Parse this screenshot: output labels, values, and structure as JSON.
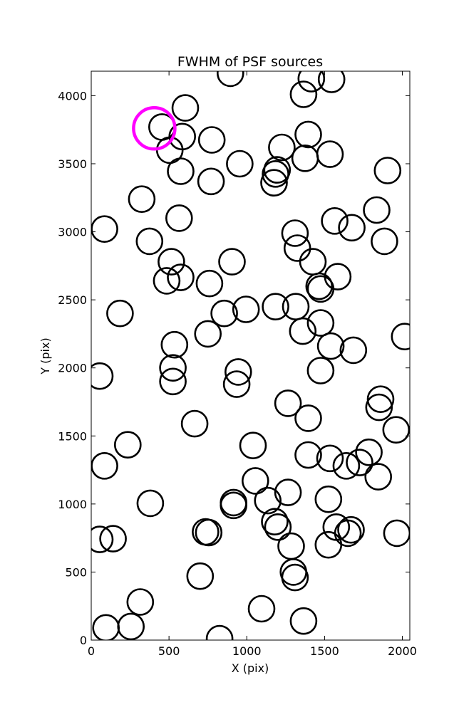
{
  "chart_data": {
    "type": "scatter",
    "title": "FWHM of PSF sources",
    "xlabel": "X (pix)",
    "ylabel": "Y (pix)",
    "xlim": [
      0,
      2048
    ],
    "ylim": [
      0,
      4180
    ],
    "xticks": [
      0,
      500,
      1000,
      1500,
      2000
    ],
    "yticks": [
      0,
      500,
      1000,
      1500,
      2000,
      2500,
      3000,
      3500,
      4000
    ],
    "grid": false,
    "marker": "open-circle",
    "marker_color": "#000000",
    "highlight_color": "#ff00ff",
    "series": [
      {
        "points": [
          {
            "x": 895,
            "y": 4165
          },
          {
            "x": 1415,
            "y": 4125
          },
          {
            "x": 1545,
            "y": 4120
          },
          {
            "x": 1365,
            "y": 4010
          },
          {
            "x": 605,
            "y": 3910
          },
          {
            "x": 455,
            "y": 3770
          },
          {
            "x": 585,
            "y": 3700
          },
          {
            "x": 775,
            "y": 3675
          },
          {
            "x": 1395,
            "y": 3715
          },
          {
            "x": 505,
            "y": 3600
          },
          {
            "x": 1225,
            "y": 3620
          },
          {
            "x": 1535,
            "y": 3570
          },
          {
            "x": 1375,
            "y": 3540
          },
          {
            "x": 955,
            "y": 3500
          },
          {
            "x": 1195,
            "y": 3455
          },
          {
            "x": 1185,
            "y": 3425
          },
          {
            "x": 575,
            "y": 3445
          },
          {
            "x": 770,
            "y": 3370
          },
          {
            "x": 1175,
            "y": 3360
          },
          {
            "x": 1905,
            "y": 3450
          },
          {
            "x": 325,
            "y": 3240
          },
          {
            "x": 1835,
            "y": 3160
          },
          {
            "x": 565,
            "y": 3100
          },
          {
            "x": 1565,
            "y": 3080
          },
          {
            "x": 1675,
            "y": 3030
          },
          {
            "x": 85,
            "y": 3020
          },
          {
            "x": 1310,
            "y": 2990
          },
          {
            "x": 1885,
            "y": 2930
          },
          {
            "x": 375,
            "y": 2930
          },
          {
            "x": 1325,
            "y": 2880
          },
          {
            "x": 515,
            "y": 2780
          },
          {
            "x": 905,
            "y": 2780
          },
          {
            "x": 1425,
            "y": 2780
          },
          {
            "x": 1585,
            "y": 2670
          },
          {
            "x": 575,
            "y": 2665
          },
          {
            "x": 485,
            "y": 2640
          },
          {
            "x": 760,
            "y": 2620
          },
          {
            "x": 1465,
            "y": 2600
          },
          {
            "x": 1475,
            "y": 2580
          },
          {
            "x": 1185,
            "y": 2450
          },
          {
            "x": 1315,
            "y": 2450
          },
          {
            "x": 995,
            "y": 2430
          },
          {
            "x": 855,
            "y": 2400
          },
          {
            "x": 185,
            "y": 2400
          },
          {
            "x": 1475,
            "y": 2330
          },
          {
            "x": 1360,
            "y": 2270
          },
          {
            "x": 750,
            "y": 2250
          },
          {
            "x": 2015,
            "y": 2230
          },
          {
            "x": 535,
            "y": 2170
          },
          {
            "x": 1540,
            "y": 2160
          },
          {
            "x": 1685,
            "y": 2130
          },
          {
            "x": 525,
            "y": 2000
          },
          {
            "x": 945,
            "y": 1970
          },
          {
            "x": 1475,
            "y": 1980
          },
          {
            "x": 55,
            "y": 1940
          },
          {
            "x": 525,
            "y": 1900
          },
          {
            "x": 935,
            "y": 1880
          },
          {
            "x": 1860,
            "y": 1770
          },
          {
            "x": 1265,
            "y": 1740
          },
          {
            "x": 1850,
            "y": 1710
          },
          {
            "x": 1395,
            "y": 1630
          },
          {
            "x": 665,
            "y": 1590
          },
          {
            "x": 1960,
            "y": 1545
          },
          {
            "x": 1040,
            "y": 1430
          },
          {
            "x": 235,
            "y": 1435
          },
          {
            "x": 1395,
            "y": 1360
          },
          {
            "x": 1785,
            "y": 1380
          },
          {
            "x": 1535,
            "y": 1335
          },
          {
            "x": 1725,
            "y": 1305
          },
          {
            "x": 1640,
            "y": 1280
          },
          {
            "x": 85,
            "y": 1280
          },
          {
            "x": 1845,
            "y": 1200
          },
          {
            "x": 1055,
            "y": 1170
          },
          {
            "x": 1265,
            "y": 1085
          },
          {
            "x": 1525,
            "y": 1035
          },
          {
            "x": 1135,
            "y": 1025
          },
          {
            "x": 915,
            "y": 1010
          },
          {
            "x": 915,
            "y": 990
          },
          {
            "x": 380,
            "y": 1005
          },
          {
            "x": 1180,
            "y": 870
          },
          {
            "x": 1200,
            "y": 830
          },
          {
            "x": 1575,
            "y": 830
          },
          {
            "x": 1670,
            "y": 810
          },
          {
            "x": 1650,
            "y": 785
          },
          {
            "x": 1965,
            "y": 785
          },
          {
            "x": 735,
            "y": 795
          },
          {
            "x": 755,
            "y": 790
          },
          {
            "x": 55,
            "y": 740
          },
          {
            "x": 140,
            "y": 745
          },
          {
            "x": 1285,
            "y": 690
          },
          {
            "x": 1525,
            "y": 700
          },
          {
            "x": 1300,
            "y": 500
          },
          {
            "x": 1310,
            "y": 460
          },
          {
            "x": 700,
            "y": 470
          },
          {
            "x": 315,
            "y": 280
          },
          {
            "x": 1095,
            "y": 230
          },
          {
            "x": 1365,
            "y": 140
          },
          {
            "x": 255,
            "y": 100
          },
          {
            "x": 95,
            "y": 90
          },
          {
            "x": 825,
            "y": 10
          }
        ]
      },
      {
        "highlight": true,
        "points": [
          {
            "x": 405,
            "y": 3760
          }
        ]
      }
    ]
  }
}
